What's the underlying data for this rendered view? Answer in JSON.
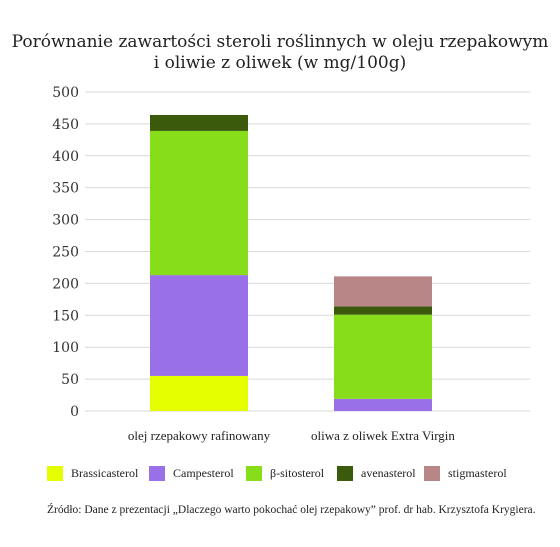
{
  "chart_data": {
    "type": "bar",
    "stacked": true,
    "title_lines": [
      "Porównanie zawartości steroli roślinnych w oleju rzepakowym",
      "i oliwie z oliwek (w mg/100g)"
    ],
    "categories": [
      "olej rzepakowy rafinowany",
      "oliwa z oliwek Extra Virgin"
    ],
    "series": [
      {
        "name": "Brassicasterol",
        "color": "#e6ff00",
        "values": [
          55,
          0
        ]
      },
      {
        "name": "Campesterol",
        "color": "#9a70e8",
        "values": [
          158,
          19
        ]
      },
      {
        "name": "β-sitosterol",
        "color": "#88dd1a",
        "values": [
          226,
          132
        ]
      },
      {
        "name": "avenasterol",
        "color": "#3c5a0c",
        "values": [
          25,
          13
        ]
      },
      {
        "name": "stigmasterol",
        "color": "#b88686",
        "values": [
          0,
          47
        ]
      }
    ],
    "yticks": [
      "500",
      "450",
      "400",
      "350",
      "300",
      "250",
      "200",
      "150",
      "100",
      "50",
      "0"
    ],
    "ylim": [
      0,
      500
    ],
    "grid": true,
    "legend_position": "bottom"
  },
  "source_text": "Źródło: Dane z prezentacji „Dlaczego warto pokochać olej rzepakowy” prof. dr hab. Krzysztofa Krygiera."
}
